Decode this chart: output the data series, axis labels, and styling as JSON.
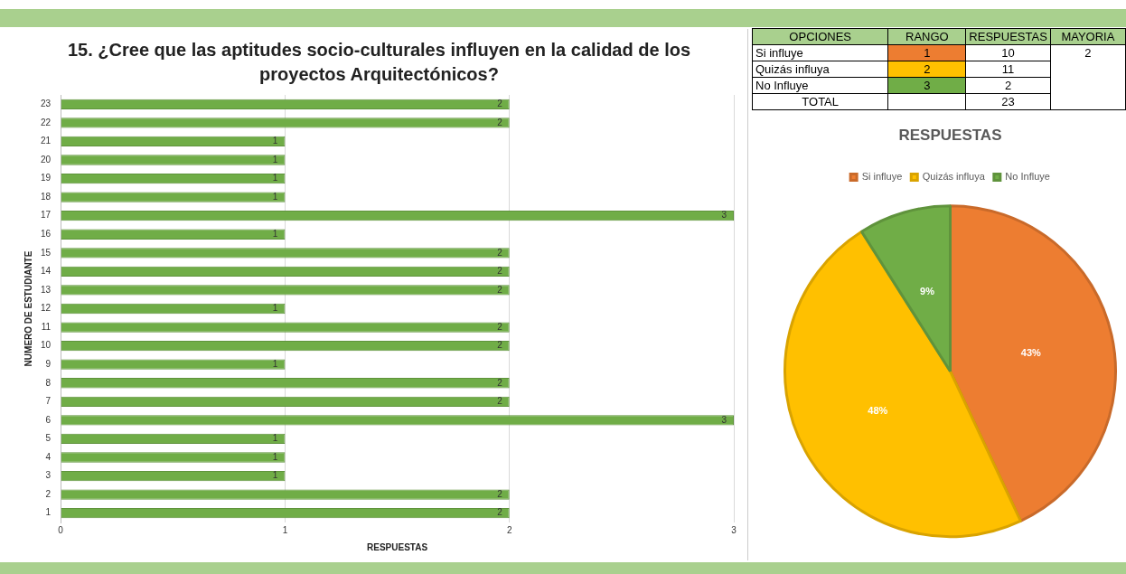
{
  "chart_data": [
    {
      "type": "bar",
      "orientation": "horizontal",
      "title": "15.  ¿Cree que las aptitudes socio-culturales influyen en la calidad de los proyectos Arquitectónicos?",
      "xlabel": "RESPUESTAS",
      "ylabel": "NUMERO DE ESTUDIANTE",
      "categories": [
        "23",
        "22",
        "21",
        "20",
        "19",
        "18",
        "17",
        "16",
        "15",
        "14",
        "13",
        "12",
        "11",
        "10",
        "9",
        "8",
        "7",
        "6",
        "5",
        "4",
        "3",
        "2",
        "1"
      ],
      "values": [
        2,
        2,
        1,
        1,
        1,
        1,
        3,
        1,
        2,
        2,
        2,
        1,
        2,
        2,
        1,
        2,
        2,
        3,
        1,
        1,
        1,
        2,
        2
      ],
      "color": "#70ad47",
      "xlim": [
        0,
        3
      ],
      "xticks": [
        0,
        1,
        2,
        3
      ],
      "grid": "x",
      "legend": false,
      "data_labels": true
    },
    {
      "type": "other",
      "cell_labels": [
        [
          "OPCIONES",
          "RANGO",
          "RESPUESTAS",
          "MAYORIA"
        ],
        [
          "Si influye",
          "1",
          "10",
          "2"
        ],
        [
          "Quizás influya",
          "2",
          "11",
          null
        ],
        [
          "No Influye",
          "3",
          "2",
          null
        ],
        [
          "TOTAL",
          null,
          "23",
          null
        ]
      ],
      "colors": [
        "#a9d08e",
        "#ed7d31",
        "#ffc000",
        "#70ad47",
        null
      ]
    },
    {
      "type": "pie",
      "title": "RESPUESTAS",
      "categories": [
        "Si influye",
        "Quizás influya",
        "No Influye"
      ],
      "values": [
        43,
        48,
        9
      ],
      "colors": [
        "#ed7d31",
        "#ffc000",
        "#70ad47"
      ],
      "value_labels": [
        "43%",
        "48%",
        "9%"
      ],
      "legend": "top"
    }
  ]
}
